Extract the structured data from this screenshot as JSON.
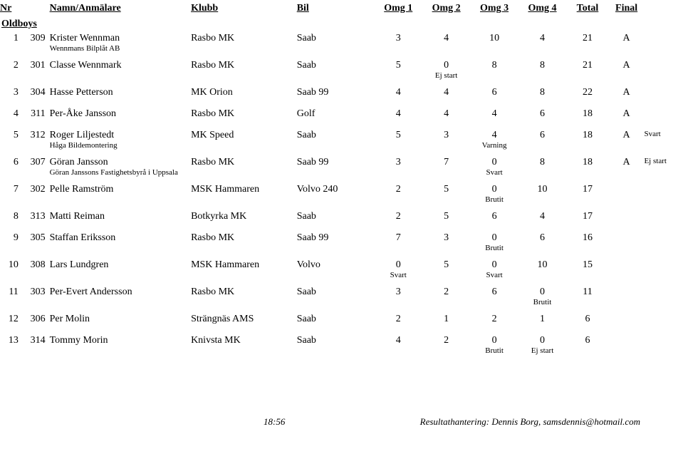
{
  "header": {
    "pos_nr": "Nr",
    "name": "Namn/Anmälare",
    "klubb": "Klubb",
    "bil": "Bil",
    "omg1": "Omg 1",
    "omg2": "Omg 2",
    "omg3": "Omg 3",
    "omg4": "Omg 4",
    "total": "Total",
    "final": "Final"
  },
  "section_title": "Oldboys",
  "rows": [
    {
      "pos": "1",
      "nr": "309",
      "name": "Krister Wennman",
      "klubb": "Rasbo MK",
      "bil": "Saab",
      "o1": "3",
      "o2": "4",
      "o3": "10",
      "o4": "4",
      "total": "21",
      "final": "A",
      "note": "",
      "sub_name": "Wennmans Bilplåt AB",
      "s1": "",
      "s2": "",
      "s3": "",
      "s4": ""
    },
    {
      "pos": "2",
      "nr": "301",
      "name": "Classe Wennmark",
      "klubb": "Rasbo MK",
      "bil": "Saab",
      "o1": "5",
      "o2": "0",
      "o3": "8",
      "o4": "8",
      "total": "21",
      "final": "A",
      "note": "",
      "sub_name": "",
      "s1": "",
      "s2": "Ej start",
      "s3": "",
      "s4": ""
    },
    {
      "pos": "3",
      "nr": "304",
      "name": "Hasse Petterson",
      "klubb": "MK Orion",
      "bil": "Saab 99",
      "o1": "4",
      "o2": "4",
      "o3": "6",
      "o4": "8",
      "total": "22",
      "final": "A",
      "note": "",
      "sub_name": "",
      "s1": "",
      "s2": "",
      "s3": "",
      "s4": "",
      "gap_after": true
    },
    {
      "pos": "4",
      "nr": "311",
      "name": "Per-Åke Jansson",
      "klubb": "Rasbo MK",
      "bil": "Golf",
      "o1": "4",
      "o2": "4",
      "o3": "4",
      "o4": "6",
      "total": "18",
      "final": "A",
      "note": "",
      "sub_name": "",
      "s1": "",
      "s2": "",
      "s3": "",
      "s4": "",
      "gap_after": true
    },
    {
      "pos": "5",
      "nr": "312",
      "name": "Roger Liljestedt",
      "klubb": "MK Speed",
      "bil": "Saab",
      "o1": "5",
      "o2": "3",
      "o3": "4",
      "o4": "6",
      "total": "18",
      "final": "A",
      "note": "Svart",
      "sub_name": "Håga Bildemontering",
      "s1": "",
      "s2": "",
      "s3": "Varning",
      "s4": ""
    },
    {
      "pos": "6",
      "nr": "307",
      "name": "Göran Jansson",
      "klubb": "Rasbo MK",
      "bil": "Saab 99",
      "o1": "3",
      "o2": "7",
      "o3": "0",
      "o4": "8",
      "total": "18",
      "final": "A",
      "note": "Ej start",
      "sub_name": "Göran Janssons Fastighetsbyrå i Uppsala",
      "s1": "",
      "s2": "",
      "s3": "Svart",
      "s4": ""
    },
    {
      "pos": "7",
      "nr": "302",
      "name": "Pelle Ramström",
      "klubb": "MSK Hammaren",
      "bil": "Volvo 240",
      "o1": "2",
      "o2": "5",
      "o3": "0",
      "o4": "10",
      "total": "17",
      "final": "",
      "note": "",
      "sub_name": "",
      "s1": "",
      "s2": "",
      "s3": "Brutit",
      "s4": ""
    },
    {
      "pos": "8",
      "nr": "313",
      "name": "Matti Reiman",
      "klubb": "Botkyrka MK",
      "bil": "Saab",
      "o1": "2",
      "o2": "5",
      "o3": "6",
      "o4": "4",
      "total": "17",
      "final": "",
      "note": "",
      "sub_name": "",
      "s1": "",
      "s2": "",
      "s3": "",
      "s4": "",
      "gap_after": true
    },
    {
      "pos": "9",
      "nr": "305",
      "name": "Staffan Eriksson",
      "klubb": "Rasbo MK",
      "bil": "Saab 99",
      "o1": "7",
      "o2": "3",
      "o3": "0",
      "o4": "6",
      "total": "16",
      "final": "",
      "note": "",
      "sub_name": "",
      "s1": "",
      "s2": "",
      "s3": "Brutit",
      "s4": ""
    },
    {
      "pos": "10",
      "nr": "308",
      "name": "Lars Lundgren",
      "klubb": "MSK Hammaren",
      "bil": "Volvo",
      "o1": "0",
      "o2": "5",
      "o3": "0",
      "o4": "10",
      "total": "15",
      "final": "",
      "note": "",
      "sub_name": "",
      "s1": "Svart",
      "s2": "",
      "s3": "Svart",
      "s4": ""
    },
    {
      "pos": "11",
      "nr": "303",
      "name": "Per-Evert Andersson",
      "klubb": "Rasbo MK",
      "bil": "Saab",
      "o1": "3",
      "o2": "2",
      "o3": "6",
      "o4": "0",
      "total": "11",
      "final": "",
      "note": "",
      "sub_name": "",
      "s1": "",
      "s2": "",
      "s3": "",
      "s4": "Brutit"
    },
    {
      "pos": "12",
      "nr": "306",
      "name": "Per Molin",
      "klubb": "Strängnäs AMS",
      "bil": "Saab",
      "o1": "2",
      "o2": "1",
      "o3": "2",
      "o4": "1",
      "total": "6",
      "final": "",
      "note": "",
      "sub_name": "",
      "s1": "",
      "s2": "",
      "s3": "",
      "s4": "",
      "gap_after": true
    },
    {
      "pos": "13",
      "nr": "314",
      "name": "Tommy Morin",
      "klubb": "Knivsta MK",
      "bil": "Saab",
      "o1": "4",
      "o2": "2",
      "o3": "0",
      "o4": "0",
      "total": "6",
      "final": "",
      "note": "",
      "sub_name": "",
      "s1": "",
      "s2": "",
      "s3": "Brutit",
      "s4": "Ej start"
    }
  ],
  "footer": {
    "time": "18:56",
    "credit": "Resultathantering: Dennis Borg, samsdennis@hotmail.com"
  }
}
